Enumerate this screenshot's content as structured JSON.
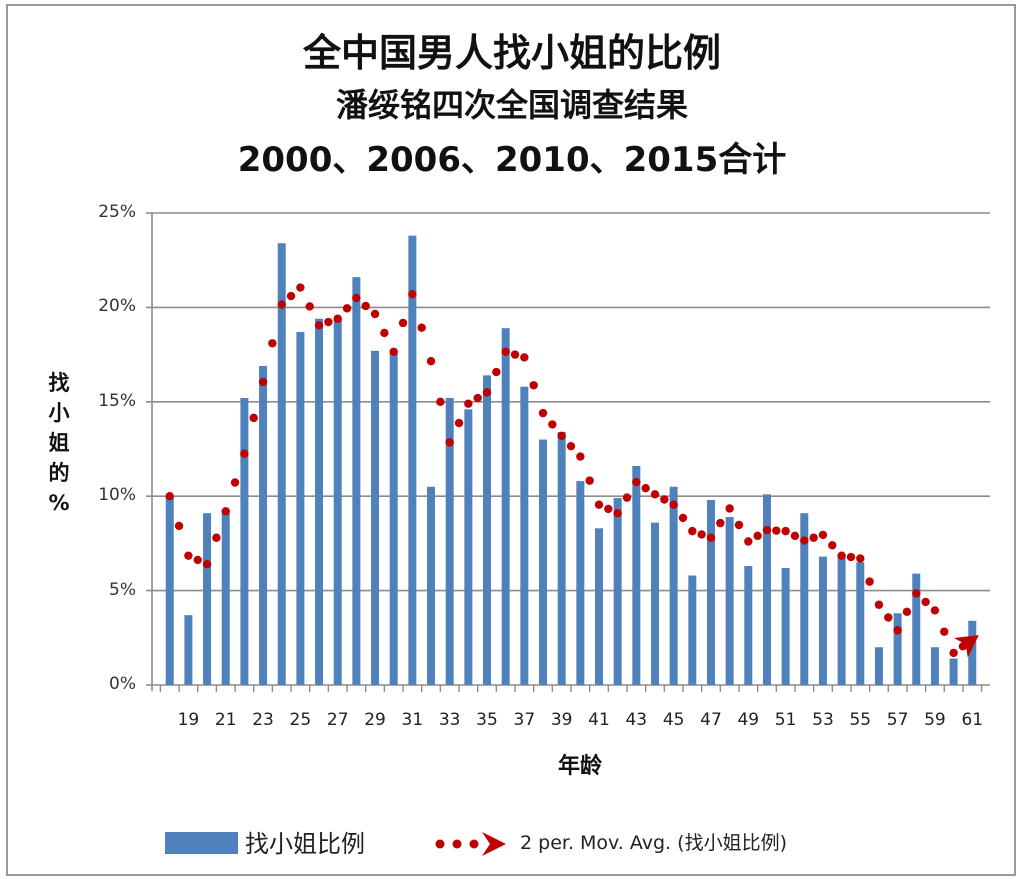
{
  "chart_data": {
    "type": "bar",
    "title": "全中国男人找小姐的比例",
    "subtitle": "潘绥铭四次全国调查结果",
    "subtitle2": "2000、2006、2010、2015合计",
    "xlabel": "年龄",
    "ylabel": "找小姐的%",
    "ylim": [
      0,
      25
    ],
    "yticks": [
      "0%",
      "5%",
      "10%",
      "15%",
      "20%",
      "25%"
    ],
    "xtick_labels": [
      "19",
      "21",
      "23",
      "25",
      "27",
      "29",
      "31",
      "33",
      "35",
      "37",
      "39",
      "41",
      "43",
      "45",
      "47",
      "49",
      "51",
      "53",
      "55",
      "57",
      "59",
      "61"
    ],
    "grid": true,
    "legend_position": "bottom",
    "categories": [
      18,
      19,
      20,
      21,
      22,
      23,
      24,
      25,
      26,
      27,
      28,
      29,
      30,
      31,
      32,
      33,
      34,
      35,
      36,
      37,
      38,
      39,
      40,
      41,
      42,
      43,
      44,
      45,
      46,
      47,
      48,
      49,
      50,
      51,
      52,
      53,
      54,
      55,
      56,
      57,
      58,
      59,
      60,
      61
    ],
    "series": [
      {
        "name": "找小姐比例",
        "type": "bar",
        "color": "#4f81bd",
        "values": [
          10.0,
          3.7,
          9.1,
          9.3,
          15.2,
          16.9,
          23.4,
          18.7,
          19.4,
          19.4,
          21.6,
          17.7,
          17.6,
          23.8,
          10.5,
          15.2,
          14.6,
          16.4,
          18.9,
          15.8,
          13.0,
          13.4,
          10.8,
          8.3,
          9.9,
          11.6,
          8.6,
          10.5,
          5.8,
          9.8,
          8.9,
          6.3,
          10.1,
          6.2,
          9.1,
          6.8,
          6.9,
          6.5,
          2.0,
          3.8,
          5.9,
          2.0,
          1.4,
          3.4
        ]
      },
      {
        "name": "2 per. Mov. Avg. (找小姐比例)",
        "type": "line",
        "style": "dotted-with-arrow",
        "color": "#c00000",
        "values": [
          null,
          6.85,
          6.4,
          9.2,
          12.25,
          16.05,
          20.15,
          21.05,
          19.05,
          19.4,
          20.5,
          19.65,
          17.65,
          20.7,
          17.15,
          12.85,
          14.9,
          15.5,
          17.65,
          17.35,
          14.4,
          13.2,
          12.1,
          9.55,
          9.1,
          10.75,
          10.1,
          9.55,
          8.15,
          7.8,
          9.35,
          7.6,
          8.2,
          8.15,
          7.65,
          7.95,
          6.85,
          6.7,
          4.25,
          2.9,
          4.85,
          3.95,
          1.7,
          2.4
        ]
      }
    ]
  },
  "legend": {
    "bar_label": "找小姐比例",
    "line_label": "2 per. Mov. Avg. (找小姐比例)"
  }
}
